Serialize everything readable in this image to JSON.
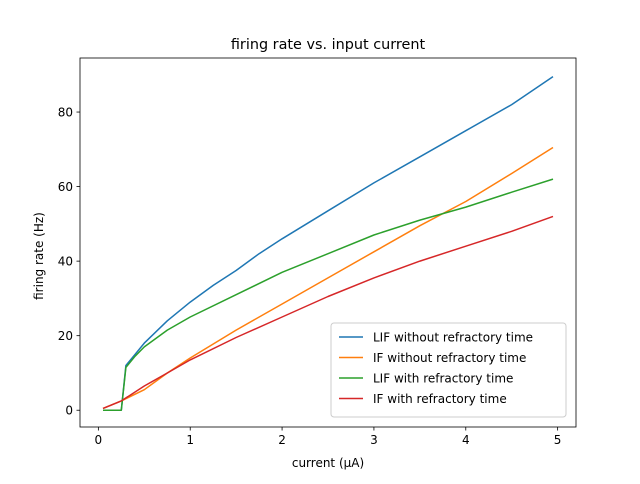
{
  "chart_data": {
    "type": "line",
    "title": "firing rate vs. input current",
    "xlabel": "current (µA)",
    "ylabel": "firing rate (Hz)",
    "xlim": [
      -0.2,
      5.2
    ],
    "ylim": [
      -4.5,
      94.5
    ],
    "xticks": [
      0,
      1,
      2,
      3,
      4,
      5
    ],
    "yticks": [
      0,
      20,
      40,
      60,
      80
    ],
    "grid": false,
    "legend_position": "lower-right",
    "series": [
      {
        "name": "LIF without refractory time",
        "color": "#1f77b4",
        "points": [
          [
            0.05,
            0
          ],
          [
            0.25,
            0
          ],
          [
            0.3,
            12
          ],
          [
            0.4,
            15
          ],
          [
            0.5,
            18
          ],
          [
            0.75,
            24
          ],
          [
            1,
            29
          ],
          [
            1.25,
            33.5
          ],
          [
            1.5,
            37.5
          ],
          [
            1.75,
            42
          ],
          [
            2,
            46
          ],
          [
            2.5,
            53.5
          ],
          [
            3,
            61
          ],
          [
            3.5,
            68
          ],
          [
            4,
            75
          ],
          [
            4.5,
            82
          ],
          [
            4.95,
            89.5
          ]
        ]
      },
      {
        "name": "IF without refractory time",
        "color": "#ff7f0e",
        "points": [
          [
            0.05,
            0.5
          ],
          [
            0.25,
            2.5
          ],
          [
            0.5,
            5.5
          ],
          [
            0.75,
            10
          ],
          [
            1,
            14
          ],
          [
            1.5,
            21.5
          ],
          [
            2,
            28.5
          ],
          [
            2.5,
            35.5
          ],
          [
            3,
            42.5
          ],
          [
            3.5,
            49.5
          ],
          [
            4,
            56
          ],
          [
            4.5,
            63.5
          ],
          [
            4.95,
            70.5
          ]
        ]
      },
      {
        "name": "LIF with refractory time",
        "color": "#2ca02c",
        "points": [
          [
            0.05,
            0
          ],
          [
            0.25,
            0
          ],
          [
            0.3,
            11.5
          ],
          [
            0.4,
            14.5
          ],
          [
            0.5,
            17
          ],
          [
            0.75,
            21.5
          ],
          [
            1,
            25
          ],
          [
            1.5,
            31
          ],
          [
            2,
            37
          ],
          [
            2.5,
            42
          ],
          [
            3,
            47
          ],
          [
            3.5,
            51
          ],
          [
            4,
            54.5
          ],
          [
            4.5,
            58.5
          ],
          [
            4.95,
            62
          ]
        ]
      },
      {
        "name": "IF with refractory time",
        "color": "#d62728",
        "points": [
          [
            0.05,
            0.5
          ],
          [
            0.25,
            2.5
          ],
          [
            0.5,
            6.5
          ],
          [
            0.75,
            10
          ],
          [
            1,
            13.5
          ],
          [
            1.5,
            19.5
          ],
          [
            2,
            25
          ],
          [
            2.5,
            30.5
          ],
          [
            3,
            35.5
          ],
          [
            3.5,
            40
          ],
          [
            4,
            44
          ],
          [
            4.5,
            48
          ],
          [
            4.95,
            52
          ]
        ]
      }
    ]
  }
}
